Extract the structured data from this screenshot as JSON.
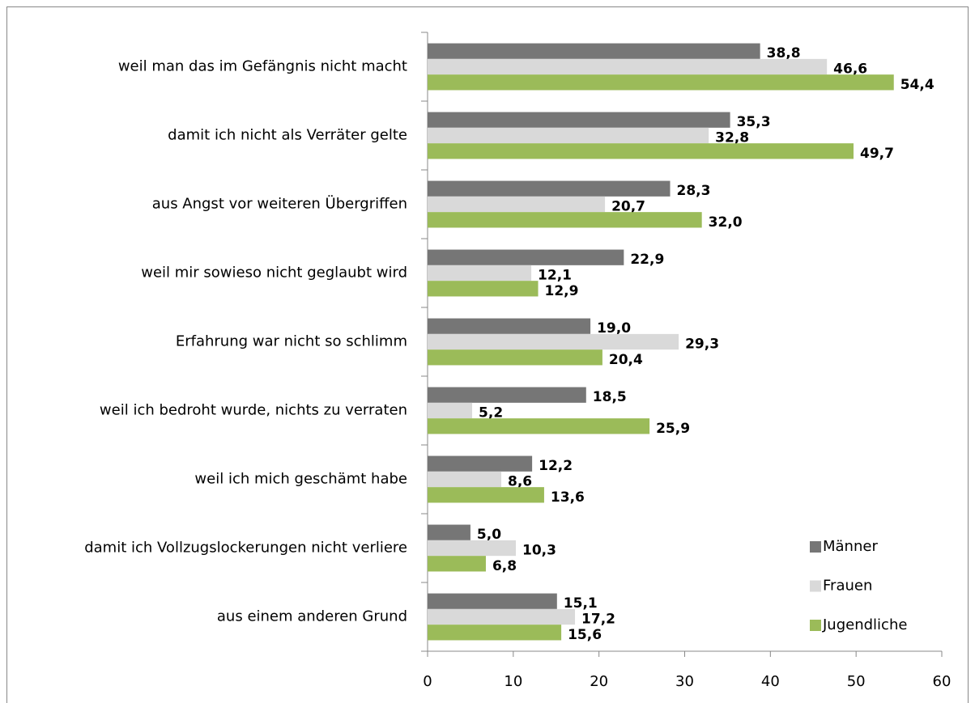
{
  "chart_data": {
    "type": "hbar",
    "categories": [
      "weil man das im Gefängnis nicht macht",
      "damit ich nicht als Verräter gelte",
      "aus Angst vor weiteren Übergriffen",
      "weil mir sowieso nicht geglaubt wird",
      "Erfahrung war nicht so schlimm",
      "weil ich bedroht wurde, nichts zu verraten",
      "weil ich mich geschämt habe",
      "damit ich Vollzugslockerungen nicht verliere",
      "aus einem anderen Grund"
    ],
    "series": [
      {
        "name": "Männer",
        "color": "#767676",
        "values": [
          38.8,
          35.3,
          28.3,
          22.9,
          19.0,
          18.5,
          12.2,
          5.0,
          15.1
        ],
        "value_labels": [
          "38,8",
          "35,3",
          "28,3",
          "22,9",
          "19,0",
          "18,5",
          "12,2",
          "5,0",
          "15,1"
        ]
      },
      {
        "name": "Frauen",
        "color": "#d9d9d9",
        "values": [
          46.6,
          32.8,
          20.7,
          12.1,
          29.3,
          5.2,
          8.6,
          10.3,
          17.2
        ],
        "value_labels": [
          "46,6",
          "32,8",
          "20,7",
          "12,1",
          "29,3",
          "5,2",
          "8,6",
          "10,3",
          "17,2"
        ]
      },
      {
        "name": "Jugendliche",
        "color": "#9bbb59",
        "values": [
          54.4,
          49.7,
          32.0,
          12.9,
          20.4,
          25.9,
          13.6,
          6.8,
          15.6
        ],
        "value_labels": [
          "54,4",
          "49,7",
          "32,0",
          "12,9",
          "20,4",
          "25,9",
          "13,6",
          "6,8",
          "15,6"
        ]
      }
    ],
    "xlim": [
      0,
      60
    ],
    "xticks": [
      0,
      10,
      20,
      30,
      40,
      50,
      60
    ],
    "legend": "lower right"
  }
}
